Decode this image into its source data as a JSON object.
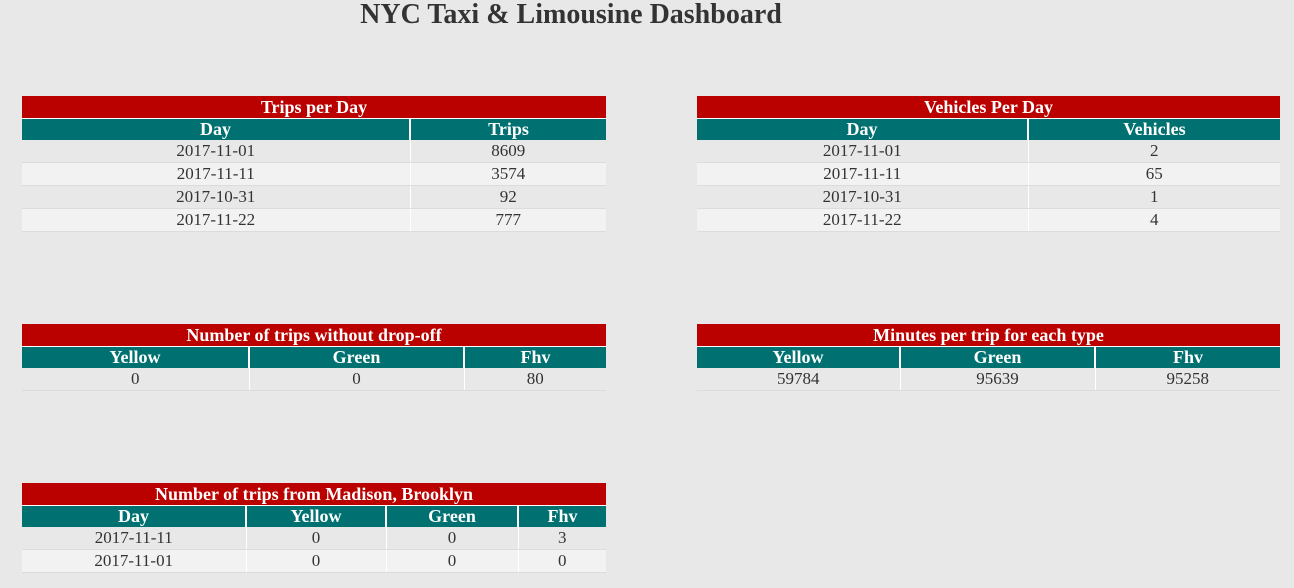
{
  "page": {
    "title": "NYC Taxi & Limousine Dashboard"
  },
  "colors": {
    "title_bar": "#bb0000",
    "header_bar": "#007070",
    "background": "#e8e8e8"
  },
  "trips_per_day": {
    "title": "Trips per Day",
    "columns": [
      "Day",
      "Trips"
    ],
    "rows": [
      [
        "2017-11-01",
        "8609"
      ],
      [
        "2017-11-11",
        "3574"
      ],
      [
        "2017-10-31",
        "92"
      ],
      [
        "2017-11-22",
        "777"
      ]
    ]
  },
  "vehicles_per_day": {
    "title": "Vehicles Per Day",
    "columns": [
      "Day",
      "Vehicles"
    ],
    "rows": [
      [
        "2017-11-01",
        "2"
      ],
      [
        "2017-11-11",
        "65"
      ],
      [
        "2017-10-31",
        "1"
      ],
      [
        "2017-11-22",
        "4"
      ]
    ]
  },
  "trips_without_dropoff": {
    "title": "Number of trips without drop-off",
    "columns": [
      "Yellow",
      "Green",
      "Fhv"
    ],
    "rows": [
      [
        "0",
        "0",
        "80"
      ]
    ]
  },
  "minutes_per_trip": {
    "title": "Minutes per trip for each type",
    "columns": [
      "Yellow",
      "Green",
      "Fhv"
    ],
    "rows": [
      [
        "59784",
        "95639",
        "95258"
      ]
    ]
  },
  "trips_from_madison": {
    "title": "Number of trips from Madison, Brooklyn",
    "columns": [
      "Day",
      "Yellow",
      "Green",
      "Fhv"
    ],
    "rows": [
      [
        "2017-11-11",
        "0",
        "0",
        "3"
      ],
      [
        "2017-11-01",
        "0",
        "0",
        "0"
      ]
    ]
  }
}
